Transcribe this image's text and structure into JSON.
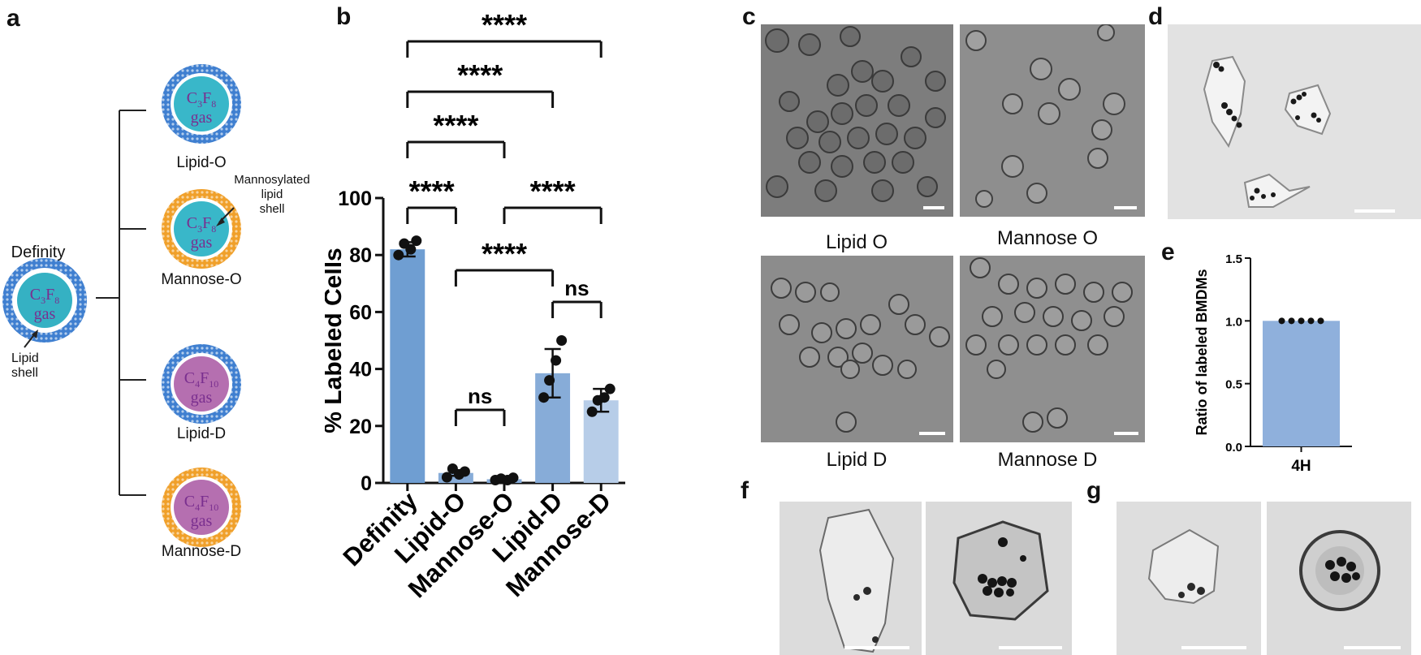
{
  "panels": {
    "a": "a",
    "b": "b",
    "c": "c",
    "d": "d",
    "e": "e",
    "f": "f",
    "g": "g"
  },
  "panel_a": {
    "definity": {
      "title": "Definity",
      "gas_main": "C",
      "gas_sub1": "3",
      "gas_f": "F",
      "gas_sub2": "8",
      "gas_word": "gas",
      "shell": "Lipid\nshell"
    },
    "lipid_o": {
      "label": "Lipid-O",
      "gas_main": "C",
      "gas_sub1": "3",
      "gas_f": "F",
      "gas_sub2": "8",
      "gas_word": "gas"
    },
    "mannose_o": {
      "label": "Mannose-O",
      "gas_main": "C",
      "gas_sub1": "3",
      "gas_f": "F",
      "gas_sub2": "8",
      "gas_word": "gas",
      "annotation": "Mannosylated\nlipid\nshell"
    },
    "lipid_d": {
      "label": "Lipid-D",
      "gas_main": "C",
      "gas_sub1": "4",
      "gas_f": "F",
      "gas_sub2": "10",
      "gas_word": "gas"
    },
    "mannose_d": {
      "label": "Mannose-D",
      "gas_main": "C",
      "gas_sub1": "4",
      "gas_f": "F",
      "gas_sub2": "10",
      "gas_word": "gas"
    },
    "colors": {
      "lipid_shell": "#3f7fd0",
      "mannose_shell": "#f0a02a",
      "core_o": "#39b7c9",
      "core_d": "#b56fb0",
      "definity_core": "#35b1c3"
    }
  },
  "chart_data": [
    {
      "type": "bar",
      "panel": "b",
      "categories": [
        "Definity",
        "Lipid-O",
        "Mannose-O",
        "Lipid-D",
        "Mannose-D"
      ],
      "values": [
        82,
        3.5,
        1.3,
        38.5,
        29
      ],
      "errors": [
        2.5,
        1.0,
        0.5,
        8.5,
        4.0
      ],
      "points": [
        [
          80,
          84,
          82,
          85
        ],
        [
          2,
          5,
          3,
          4
        ],
        [
          1,
          1.5,
          1,
          1.8
        ],
        [
          30,
          36,
          43,
          50
        ],
        [
          25,
          29,
          30,
          33
        ]
      ],
      "bar_colors": [
        "#6f9ed2",
        "#87acd8",
        "#87acd8",
        "#87acd8",
        "#b7cde8"
      ],
      "ylabel": "% Labeled Cells",
      "ylim": [
        0,
        100
      ],
      "yticks": [
        0,
        20,
        40,
        60,
        80,
        100
      ],
      "significance": [
        {
          "from": 0,
          "to": 1,
          "label": "****"
        },
        {
          "from": 0,
          "to": 2,
          "label": "****"
        },
        {
          "from": 0,
          "to": 3,
          "label": "****"
        },
        {
          "from": 0,
          "to": 4,
          "label": "****"
        },
        {
          "from": 1,
          "to": 2,
          "label": "ns"
        },
        {
          "from": 1,
          "to": 3,
          "label": "****"
        },
        {
          "from": 2,
          "to": 4,
          "label": "****"
        },
        {
          "from": 3,
          "to": 4,
          "label": "ns"
        }
      ]
    },
    {
      "type": "bar",
      "panel": "e",
      "categories": [
        "4H"
      ],
      "values": [
        1.0
      ],
      "points": [
        [
          1,
          1,
          1,
          1,
          1
        ]
      ],
      "bar_color": "#8fb0dc",
      "ylabel": "Ratio of labeled BMDMs",
      "ylim": [
        0,
        1.5
      ],
      "yticks": [
        "0.0",
        "0.5",
        "1.0",
        "1.5"
      ]
    }
  ],
  "panel_c": {
    "labels": [
      "Lipid O",
      "Mannose O",
      "Lipid D",
      "Mannose D"
    ]
  }
}
